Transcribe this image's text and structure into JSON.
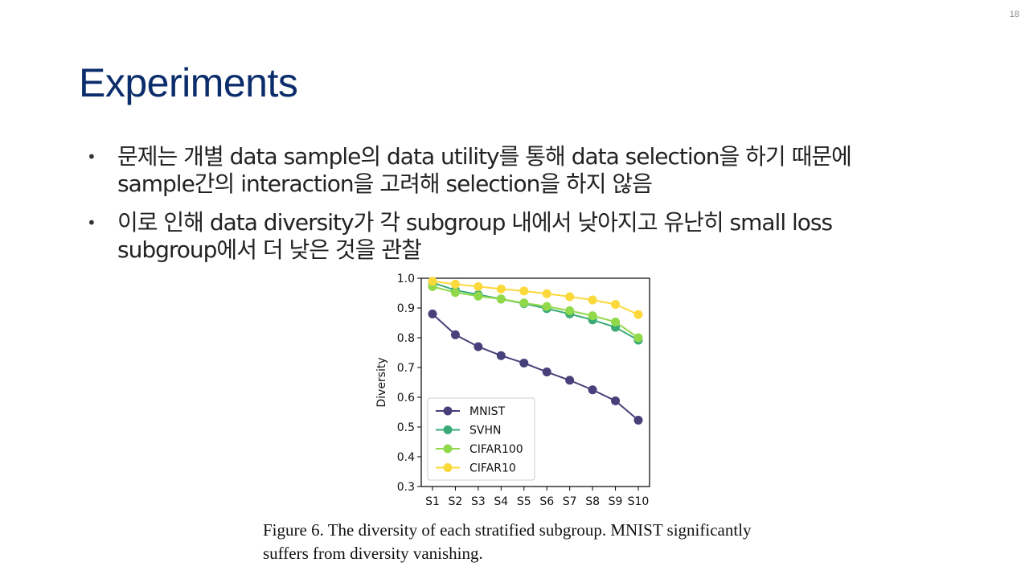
{
  "slide": {
    "page_number": "18",
    "title": "Experiments",
    "bullets": [
      "문제는 개별 data sample의 data utility를 통해 data selection을 하기 때문에 sample간의 interaction을 고려해 selection을 하지 않음",
      "이로 인해 data diversity가 각 subgroup 내에서 낮아지고 유난히 small loss subgroup에서 더 낮은 것을 관찰"
    ],
    "bullet_symbol": "•",
    "title_color": "#0b2d6b",
    "caption": "Figure 6.  The diversity of each stratified subgroup.  MNIST significantly suffers from diversity vanishing."
  },
  "chart_data": {
    "type": "line",
    "x": [
      "S1",
      "S2",
      "S3",
      "S4",
      "S5",
      "S6",
      "S7",
      "S8",
      "S9",
      "S10"
    ],
    "ylabel": "Diversity",
    "xlabel": "",
    "ylim": [
      0.3,
      1.0
    ],
    "yticks": [
      "0.3",
      "0.4",
      "0.5",
      "0.6",
      "0.7",
      "0.8",
      "0.9",
      "1.0"
    ],
    "legend_position": "lower-left",
    "grid": false,
    "series": [
      {
        "name": "MNIST",
        "color": "#48407a",
        "values": [
          0.88,
          0.81,
          0.77,
          0.74,
          0.715,
          0.685,
          0.657,
          0.625,
          0.588,
          0.523
        ]
      },
      {
        "name": "SVHN",
        "color": "#3aaa77",
        "values": [
          0.985,
          0.96,
          0.945,
          0.93,
          0.915,
          0.898,
          0.88,
          0.86,
          0.835,
          0.792
        ]
      },
      {
        "name": "CIFAR100",
        "color": "#8fd94a",
        "values": [
          0.972,
          0.952,
          0.94,
          0.93,
          0.917,
          0.905,
          0.891,
          0.874,
          0.853,
          0.8
        ]
      },
      {
        "name": "CIFAR10",
        "color": "#fbd93a",
        "values": [
          0.99,
          0.98,
          0.972,
          0.964,
          0.957,
          0.948,
          0.938,
          0.927,
          0.912,
          0.878
        ]
      }
    ]
  }
}
